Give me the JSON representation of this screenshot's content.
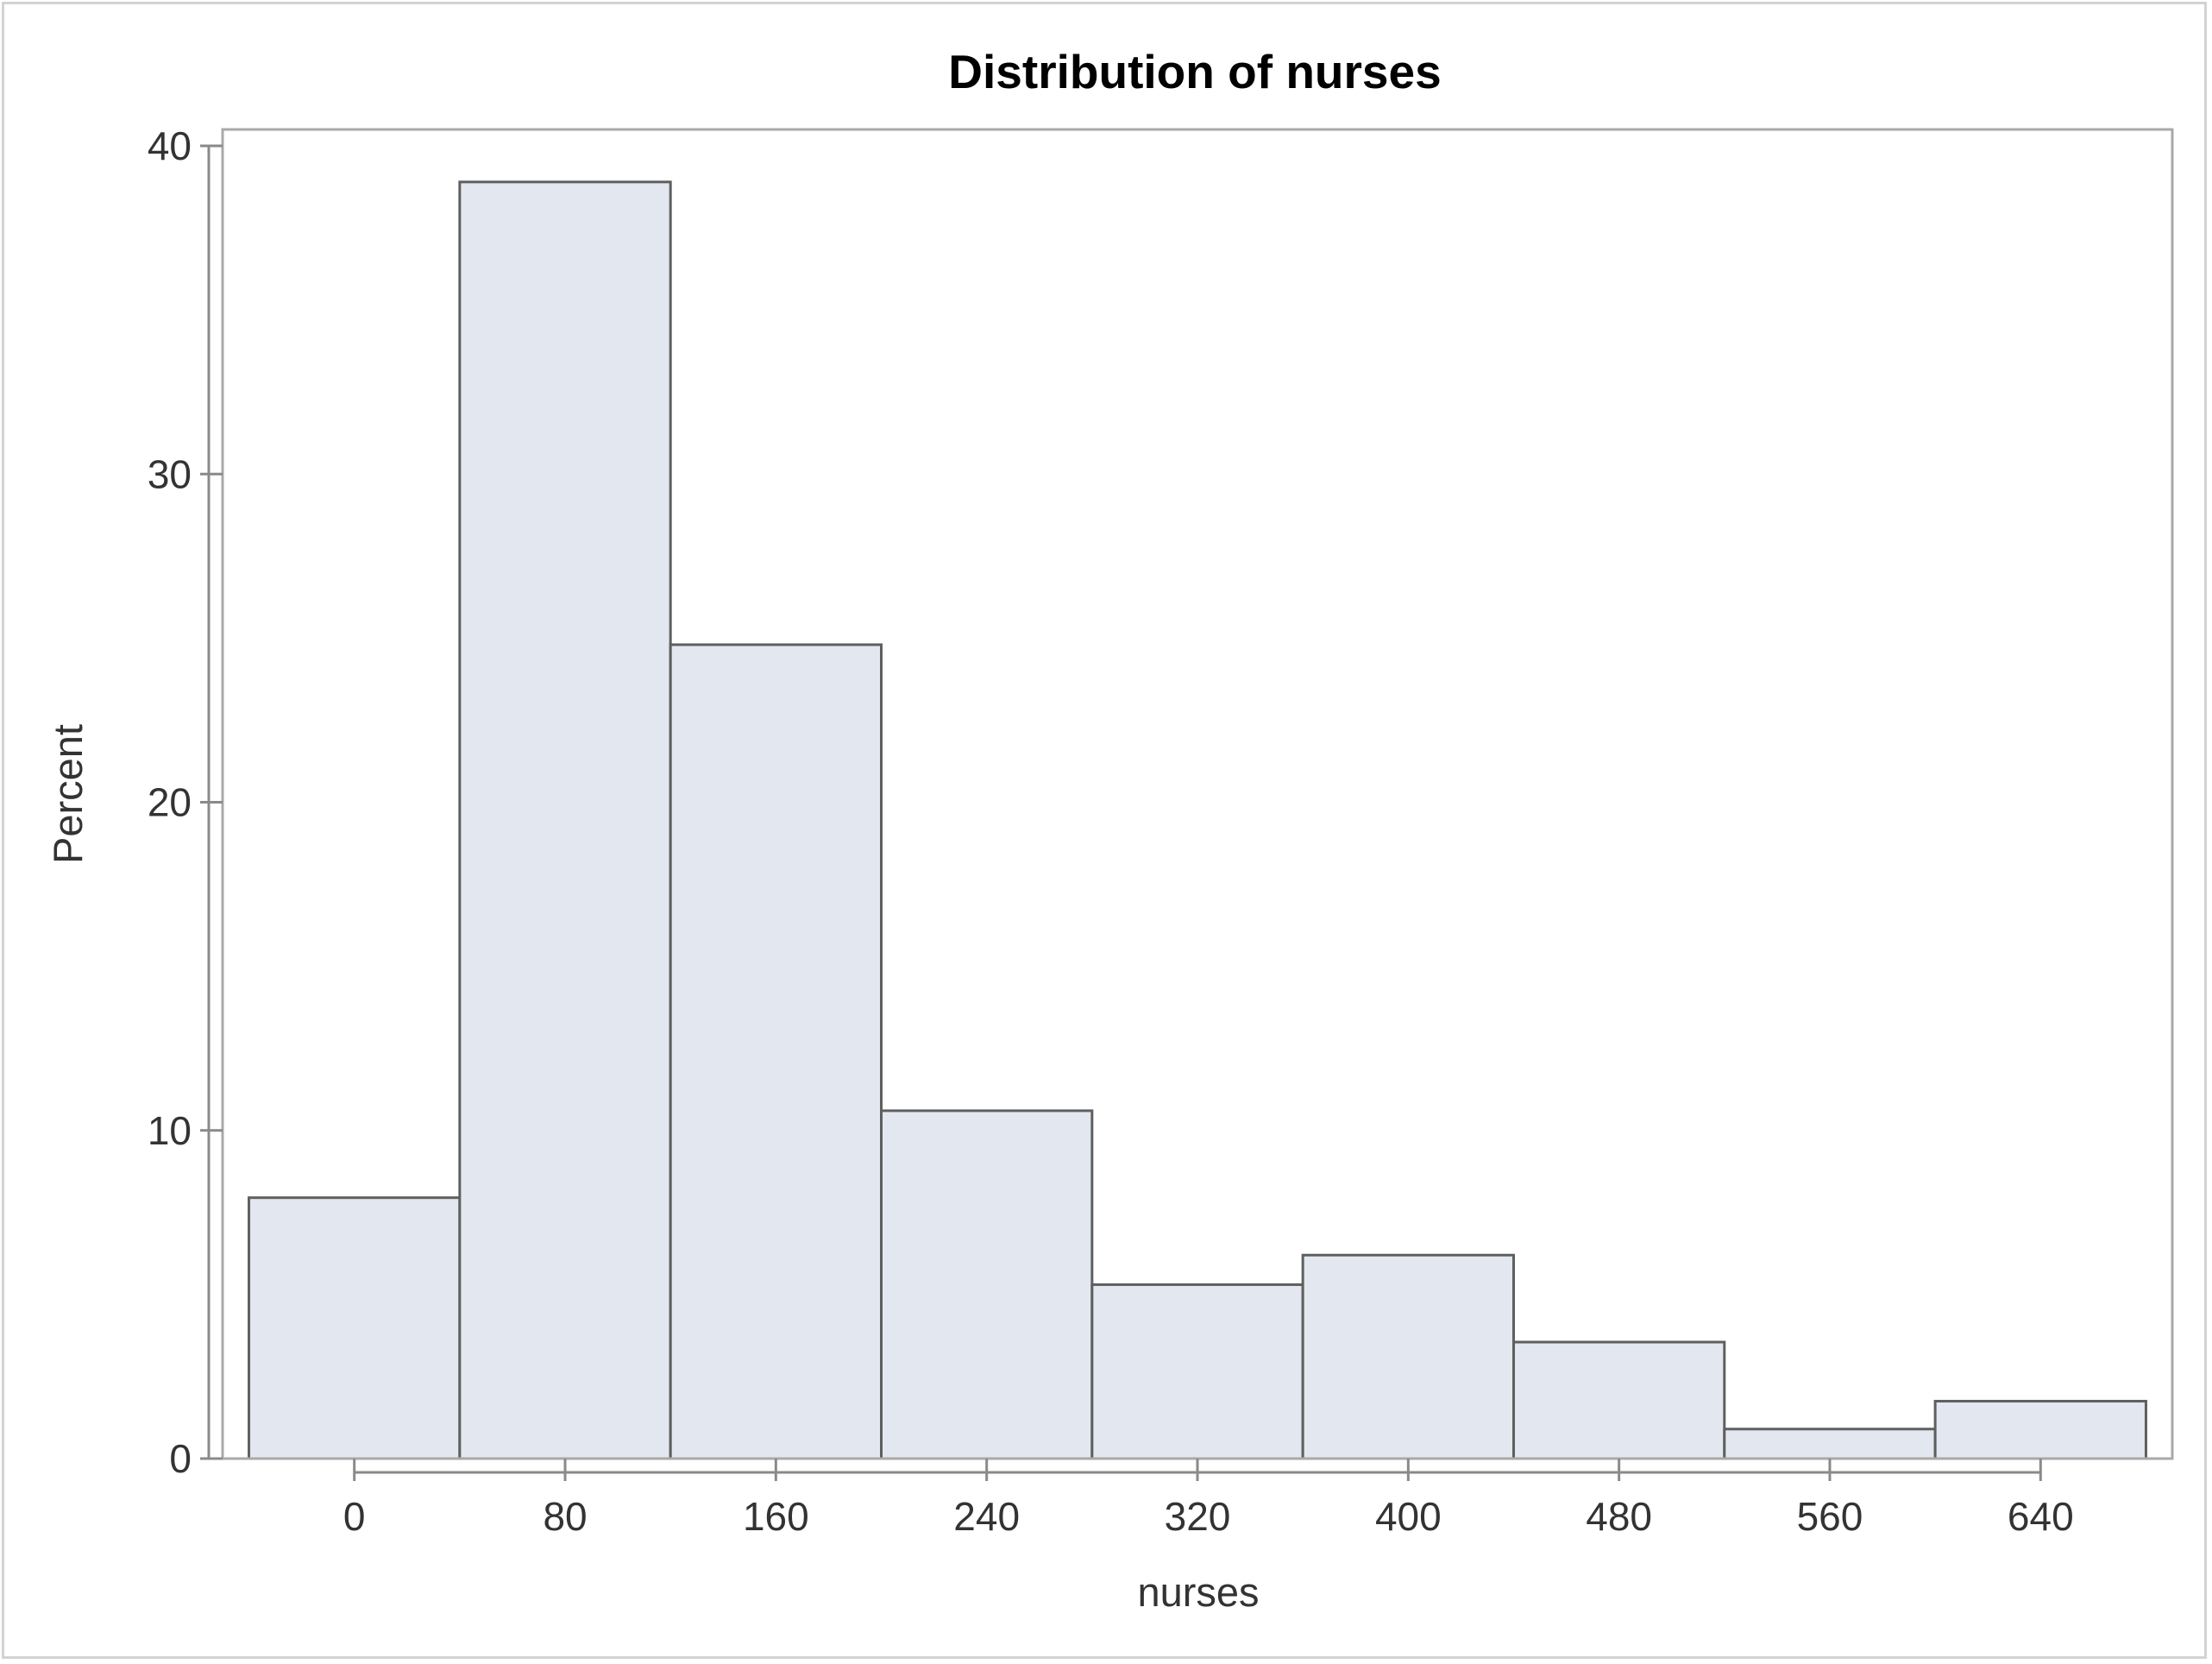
{
  "chart_data": {
    "type": "bar",
    "title": "Distribution of nurses",
    "xlabel": "nurses",
    "ylabel": "Percent",
    "bin_width": 80,
    "bins": [
      {
        "midpoint": 0,
        "value": 7.95
      },
      {
        "midpoint": 80,
        "value": 38.9
      },
      {
        "midpoint": 160,
        "value": 24.8
      },
      {
        "midpoint": 240,
        "value": 10.6
      },
      {
        "midpoint": 320,
        "value": 5.3
      },
      {
        "midpoint": 400,
        "value": 6.2
      },
      {
        "midpoint": 480,
        "value": 3.55
      },
      {
        "midpoint": 560,
        "value": 0.9
      },
      {
        "midpoint": 640,
        "value": 1.75
      }
    ],
    "x_ticks": [
      0,
      80,
      160,
      240,
      320,
      400,
      480,
      560,
      640
    ],
    "y_ticks": [
      0,
      10,
      20,
      30,
      40
    ],
    "xlim": [
      -50,
      690
    ],
    "ylim": [
      0,
      40.5
    ],
    "grid": false,
    "legend": "none",
    "colors": {
      "bar_fill": "#e3e8f0",
      "bar_stroke": "#5f5f5f",
      "frame": "#a9a9a9"
    }
  }
}
